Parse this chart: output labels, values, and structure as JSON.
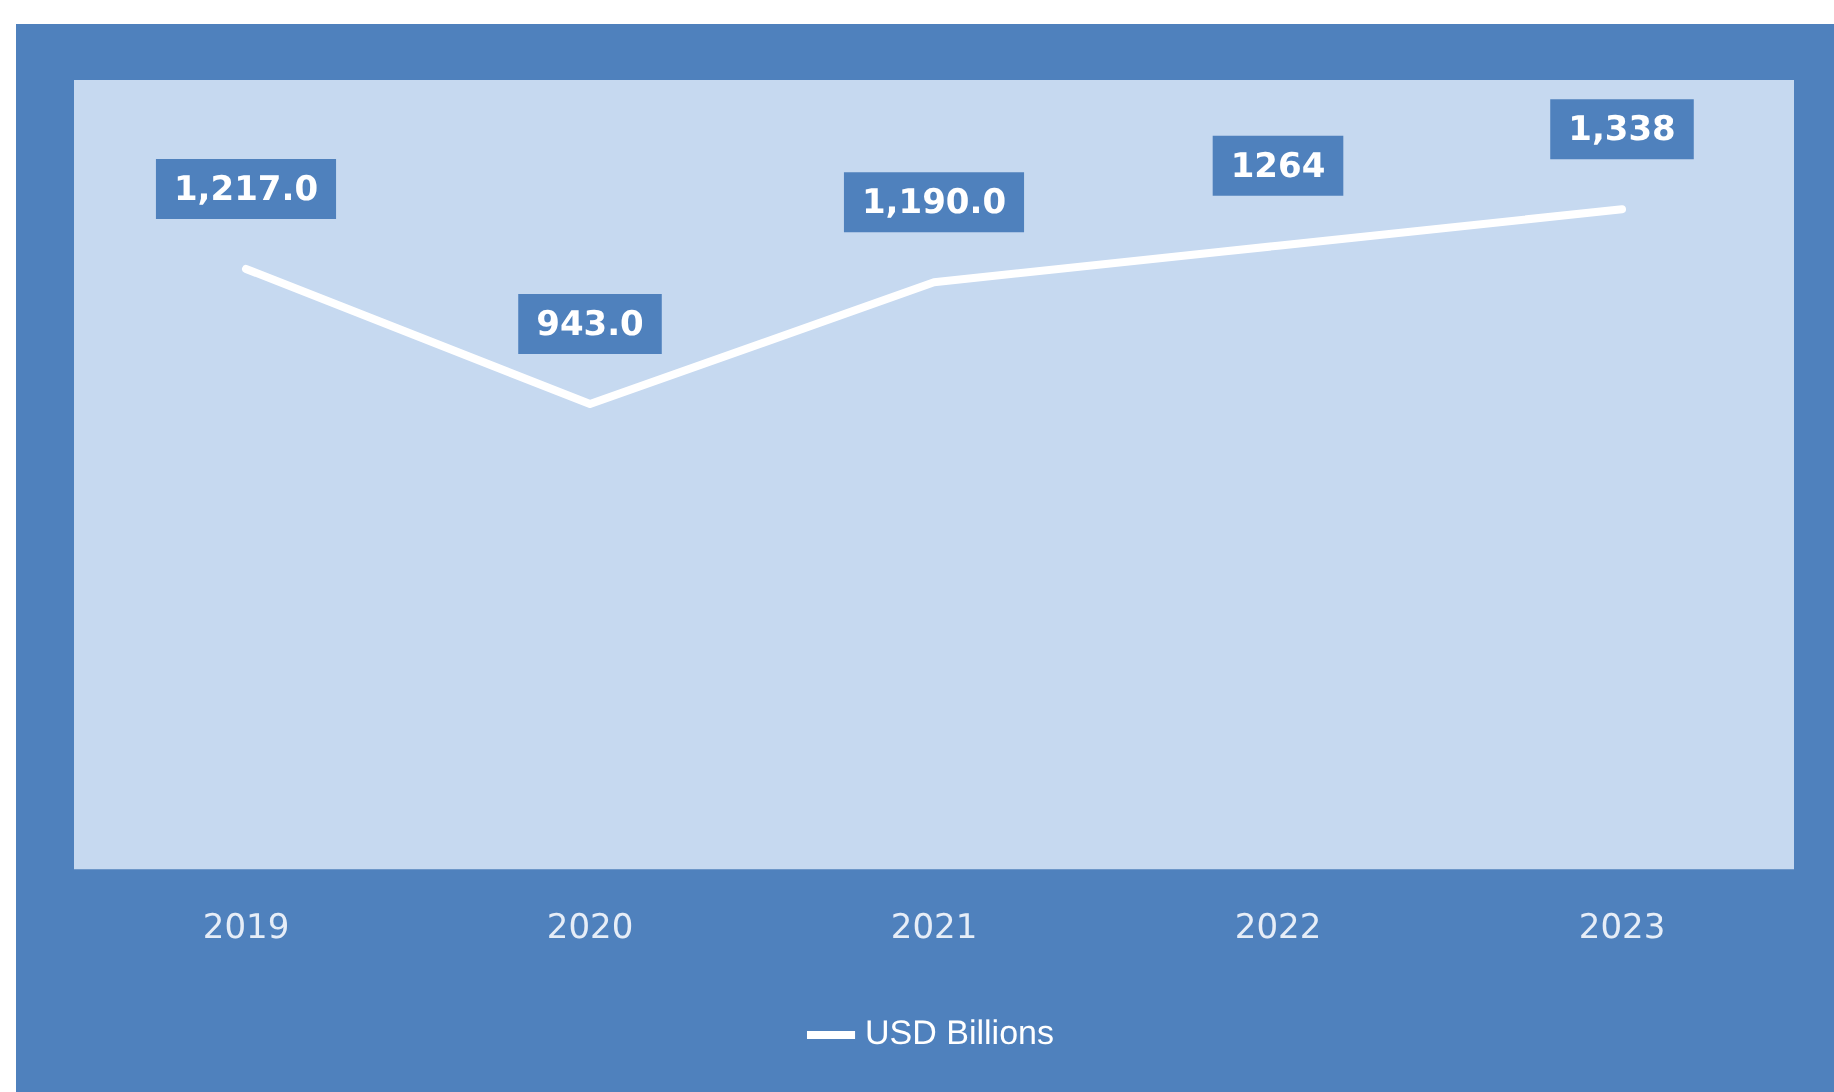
{
  "chart_data": {
    "type": "line",
    "categories": [
      "2019",
      "2020",
      "2021",
      "2022",
      "2023"
    ],
    "series": [
      {
        "name": "USD Billions",
        "color": "#ffffff",
        "values": [
          1217,
          943,
          1190,
          1264,
          1338
        ],
        "value_labels": [
          "1,217.0",
          "943.0",
          "1,190.0",
          "1264",
          "1,338"
        ]
      }
    ],
    "ylim": [
      0,
      1600
    ],
    "legend": "bottom",
    "grid": false,
    "marker": "none",
    "line_style": "solid"
  }
}
